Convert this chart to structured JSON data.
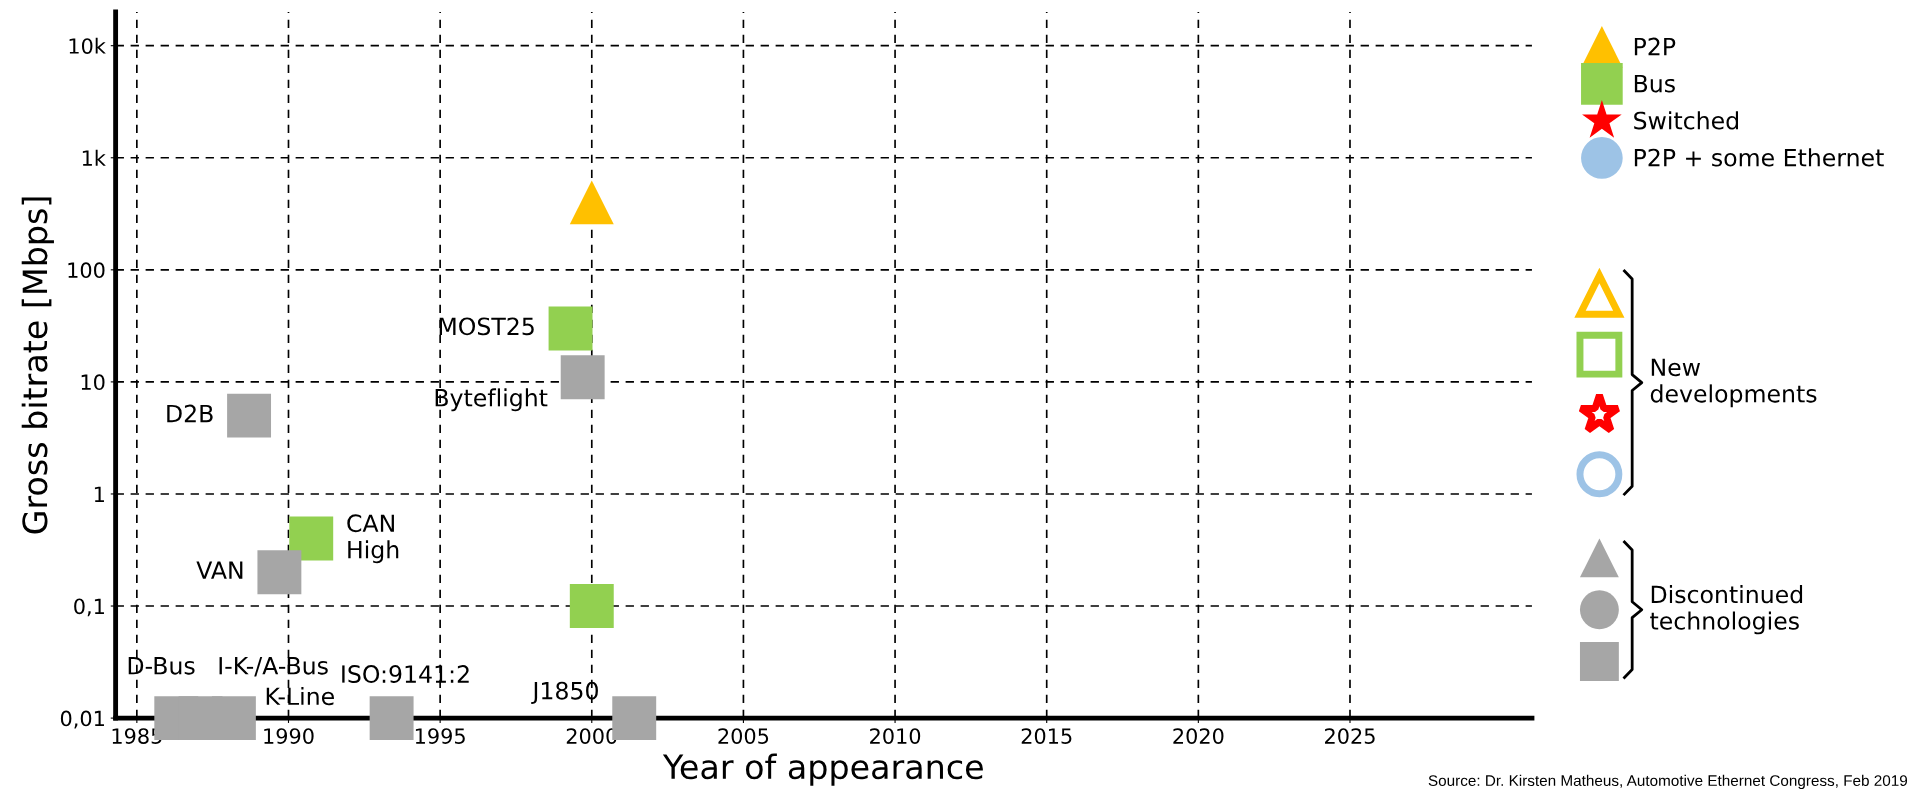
{
  "chart_data": {
    "type": "scatter",
    "xlabel": "Year of appearance",
    "ylabel": "Gross bitrate [Mbps]",
    "xlim": [
      1984.3,
      2031
    ],
    "xticks": [
      1985,
      1990,
      1995,
      2000,
      2005,
      2010,
      2015,
      2020,
      2025
    ],
    "ylim": [
      0.01,
      20000
    ],
    "yticks": [
      {
        "value": 10000,
        "label": "10k"
      },
      {
        "value": 1000,
        "label": "1k"
      },
      100,
      10,
      1,
      {
        "value": 0.1,
        "label": "0,1"
      },
      {
        "value": 0.01,
        "label": "0,01"
      }
    ],
    "log": "y",
    "grid": true,
    "legend": "right",
    "series": [
      {
        "name": "P2P",
        "color": "#ffc000",
        "marker": "triangle",
        "x": [
          2000
        ],
        "values": [
          400
        ]
      },
      {
        "name": "Bus",
        "color": "#92d050",
        "marker": "square",
        "x": [
          1990.75,
          1999.3,
          2000
        ],
        "values": [
          0.4,
          30,
          0.1
        ]
      },
      {
        "name": "Switched",
        "color": "#ff0000",
        "marker": "star"
      },
      {
        "name": "P2P + some Ethernet",
        "color": "#9dc3e6",
        "marker": "circle"
      },
      {
        "color": "#a6a6a6",
        "marker": "square",
        "x": [
          1986.3,
          1987.1,
          1988.2,
          1988.7,
          1989.7,
          1993.4,
          1999.7,
          2001.4
        ],
        "values": [
          0.01,
          0.01,
          0.01,
          5,
          0.2,
          0.01,
          11,
          0.01
        ]
      }
    ],
    "annotations": [
      {
        "text": "D2B",
        "x": 1988.7,
        "y": 5
      },
      {
        "text": "VAN",
        "x": 1989.7,
        "y": 0.2
      },
      {
        "text": "CAN\nHigh",
        "x": 1990.75,
        "y": 0.4
      },
      {
        "text": "D-Bus",
        "x": 1986.3,
        "y": 0.01
      },
      {
        "text": "I-K-/A-Bus",
        "x": 1988.2,
        "y": 0.01
      },
      {
        "text": "K-Line",
        "x": 1988.2,
        "y": 0.01
      },
      {
        "text": "ISO:9141:2",
        "x": 1993.4,
        "y": 0.01
      },
      {
        "text": "J1850",
        "x": 2001.4,
        "y": 0.01
      },
      {
        "text": "MOST25",
        "x": 1999.3,
        "y": 30
      },
      {
        "text": "Byteflight",
        "x": 1999.7,
        "y": 11
      },
      "New\ndevelopments",
      "Discontinued\ntechnologies",
      "Source: Dr. Kirsten Matheus, Automotive Ethernet Congress, Feb 2019"
    ]
  }
}
